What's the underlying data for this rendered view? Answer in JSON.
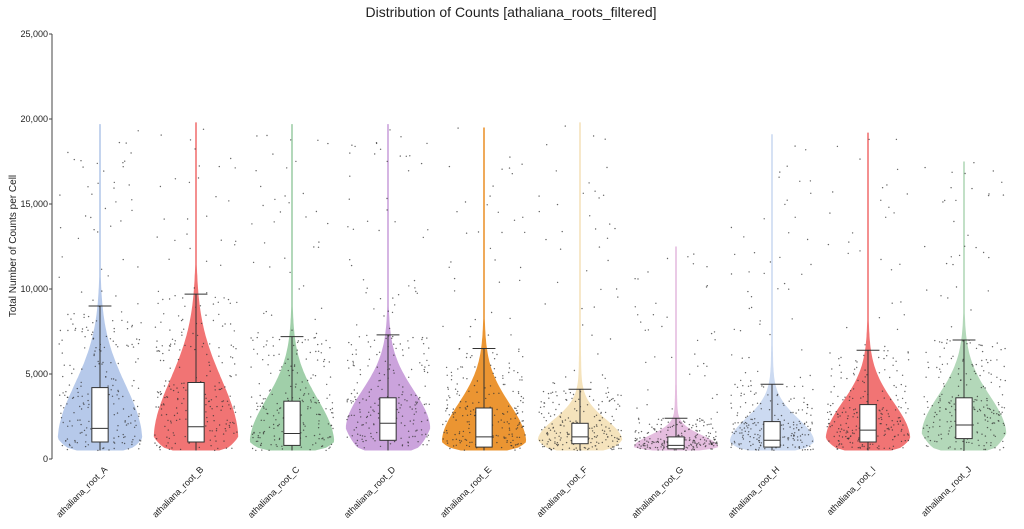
{
  "chart_data": {
    "type": "violin",
    "title": "Distribution of Counts [athaliana_roots_filtered]",
    "xlabel": "",
    "ylabel": "Total Number of Counts per Cell",
    "ylim": [
      0,
      25000
    ],
    "yticks": [
      0,
      5000,
      10000,
      15000,
      20000,
      25000
    ],
    "ytick_labels": [
      "0",
      "5,000",
      "10,000",
      "15,000",
      "20,000",
      "25,000"
    ],
    "grid": false,
    "legend": "none",
    "categories": [
      "athaliana_root_A",
      "athaliana_root_B",
      "athaliana_root_C",
      "athaliana_root_D",
      "athaliana_root_E",
      "athaliana_root_F",
      "athaliana_root_G",
      "athaliana_root_H",
      "athaliana_root_I",
      "athaliana_root_J"
    ],
    "series": [
      {
        "category": "athaliana_root_A",
        "color": "#a9c0e6",
        "min": 500,
        "q1": 1000,
        "median": 1800,
        "q3": 4200,
        "whisker_high": 9000,
        "max": 19700,
        "mode": 1200
      },
      {
        "category": "athaliana_root_B",
        "color": "#ee5c5c",
        "min": 500,
        "q1": 1000,
        "median": 1900,
        "q3": 4500,
        "whisker_high": 9700,
        "max": 19800,
        "mode": 1300
      },
      {
        "category": "athaliana_root_C",
        "color": "#8fc79a",
        "min": 500,
        "q1": 800,
        "median": 1500,
        "q3": 3400,
        "whisker_high": 7200,
        "max": 19700,
        "mode": 1000
      },
      {
        "category": "athaliana_root_D",
        "color": "#c293d6",
        "min": 500,
        "q1": 1100,
        "median": 2100,
        "q3": 3600,
        "whisker_high": 7300,
        "max": 19700,
        "mode": 1800
      },
      {
        "category": "athaliana_root_E",
        "color": "#e8820e",
        "min": 500,
        "q1": 700,
        "median": 1300,
        "q3": 3000,
        "whisker_high": 6500,
        "max": 19500,
        "mode": 1000
      },
      {
        "category": "athaliana_root_F",
        "color": "#f3deb0",
        "min": 500,
        "q1": 900,
        "median": 1300,
        "q3": 2100,
        "whisker_high": 4100,
        "max": 19800,
        "mode": 1100
      },
      {
        "category": "athaliana_root_G",
        "color": "#e0b2d9",
        "min": 500,
        "q1": 600,
        "median": 800,
        "q3": 1300,
        "whisker_high": 2400,
        "max": 12500,
        "mode": 700
      },
      {
        "category": "athaliana_root_H",
        "color": "#c3d3ef",
        "min": 500,
        "q1": 700,
        "median": 1100,
        "q3": 2200,
        "whisker_high": 4400,
        "max": 19100,
        "mode": 1000
      },
      {
        "category": "athaliana_root_I",
        "color": "#ee5c5c",
        "min": 500,
        "q1": 1000,
        "median": 1700,
        "q3": 3200,
        "whisker_high": 6400,
        "max": 19200,
        "mode": 1200
      },
      {
        "category": "athaliana_root_J",
        "color": "#a6d1ad",
        "min": 500,
        "q1": 1200,
        "median": 2000,
        "q3": 3600,
        "whisker_high": 7000,
        "max": 17500,
        "mode": 1500
      }
    ]
  }
}
